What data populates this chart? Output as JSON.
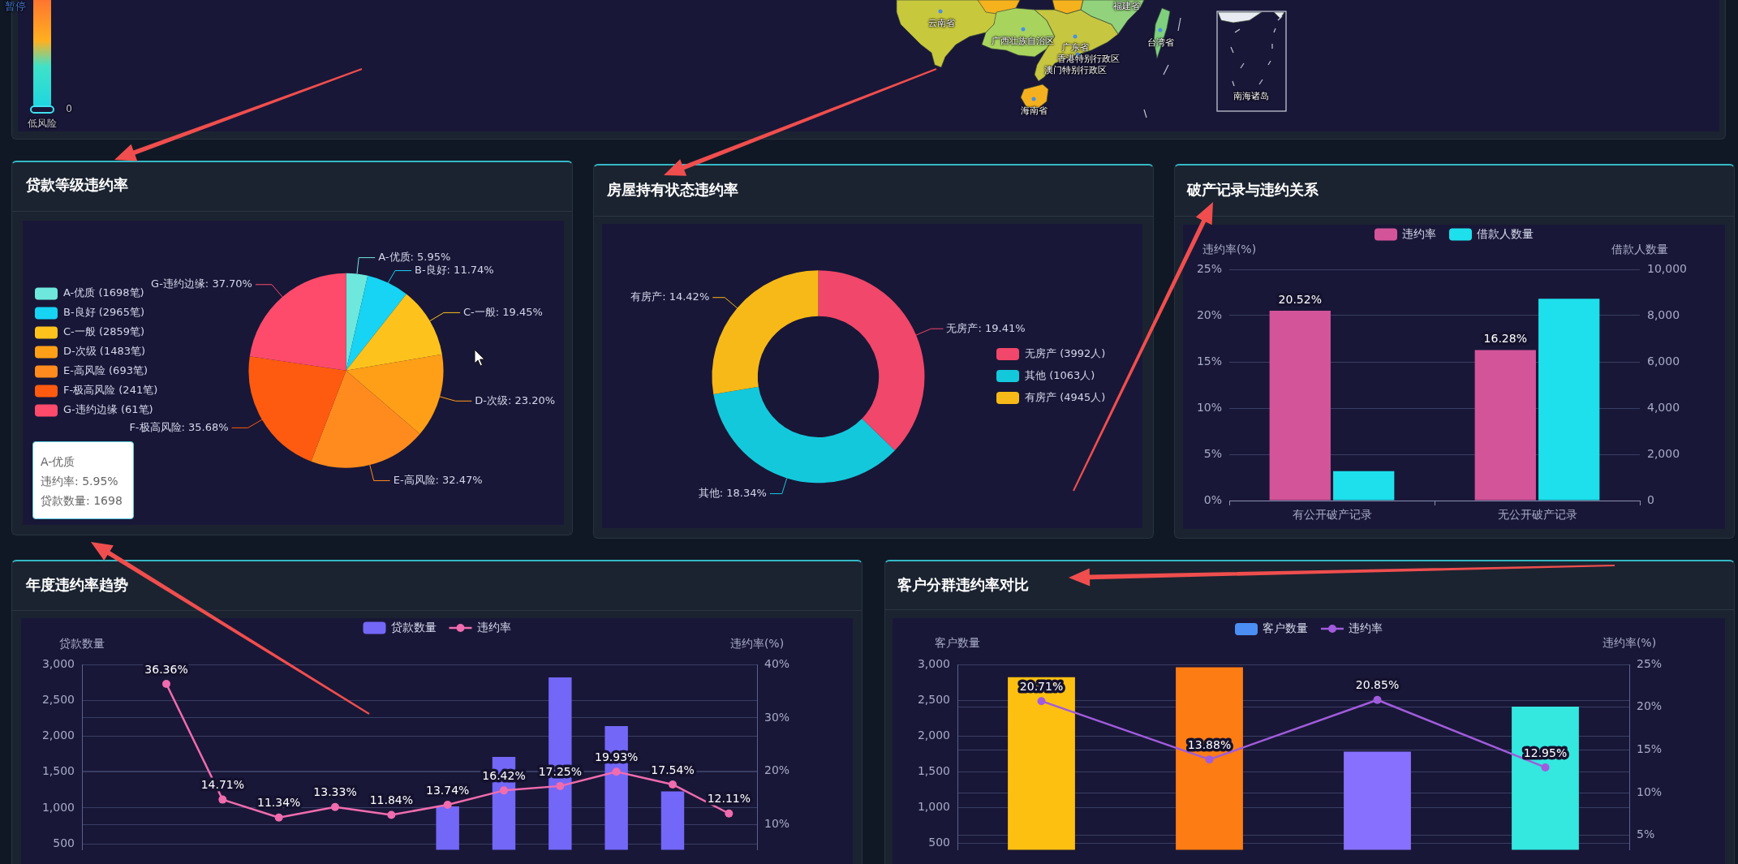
{
  "chart_data": [
    {
      "type": "other",
      "annotations": [
        "暂停",
        "0",
        "低风险",
        "云南省",
        "广西壮族自治区",
        "广东省",
        "香港特别行政区",
        "澳门特别行政区",
        "福建省",
        "台湾省",
        "海南省",
        "南海诸岛"
      ]
    },
    {
      "type": "pie",
      "title": "贷款等级违约率",
      "categories": [
        "A-优质 (1698笔)",
        "B-良好 (2965笔)",
        "C-一般 (2859笔)",
        "D-次级 (1483笔)",
        "E-高风险 (693笔)",
        "F-极高风险 (241笔)",
        "G-违约边缘 (61笔)"
      ],
      "values": [
        5.95,
        11.74,
        19.45,
        23.2,
        32.47,
        35.68,
        37.7
      ],
      "value_labels": [
        "A-优质: 5.95%",
        "B-良好: 11.74%",
        "C-一般: 19.45%",
        "D-次级: 23.20%",
        "E-高风险: 32.47%",
        "F-极高风险: 35.68%",
        "G-违约边缘: 37.70%"
      ],
      "colors": [
        "#6ee8dc",
        "#17d3f4",
        "#fdc31c",
        "#ff9f18",
        "#ff8b1e",
        "#ff5b10",
        "#fe4b6b"
      ],
      "legend": "left",
      "annotations": [
        "A-优质",
        "违约率: 5.95%",
        "贷款数量: 1698"
      ]
    },
    {
      "type": "donut",
      "title": "房屋持有状态违约率",
      "categories": [
        "无房产 (3992人)",
        "其他 (1063人)",
        "有房产 (4945人)"
      ],
      "values": [
        19.41,
        18.34,
        14.42
      ],
      "value_labels": [
        "无房产: 19.41%",
        "其他: 18.34%",
        "有房产: 14.42%"
      ],
      "colors": [
        "#f0476a",
        "#14c8dc",
        "#f6b918"
      ],
      "legend": "right"
    },
    {
      "type": "bar",
      "title": "破产记录与违约关系",
      "categories": [
        "有公开破产记录",
        "无公开破产记录"
      ],
      "ylabel": "违约率(%)",
      "y2label": "借款人数量",
      "ylim": [
        0,
        25
      ],
      "yticks": [
        {
          "value": 0,
          "label": "0%"
        },
        {
          "value": 5,
          "label": "5%"
        },
        {
          "value": 10,
          "label": "10%"
        },
        {
          "value": 15,
          "label": "15%"
        },
        {
          "value": 20,
          "label": "20%"
        },
        {
          "value": 25,
          "label": "25%"
        }
      ],
      "y2lim": [
        0,
        10000
      ],
      "y2ticks": [
        0,
        {
          "value": 2000,
          "label": "2,000"
        },
        {
          "value": 4000,
          "label": "4,000"
        },
        {
          "value": 6000,
          "label": "6,000"
        },
        {
          "value": 8000,
          "label": "8,000"
        },
        {
          "value": 10000,
          "label": "10,000"
        }
      ],
      "series": [
        {
          "name": "违约率",
          "color": "#d4549a",
          "values": [
            20.52,
            16.28
          ],
          "value_labels": [
            "20.52%",
            "16.28%"
          ]
        },
        {
          "name": "借款人数量",
          "axis": "y2",
          "color": "#1ee0ec",
          "values": [
            1270,
            8730
          ]
        }
      ],
      "legend": "top",
      "grid": "y"
    },
    {
      "type": "bar",
      "title": "年度违约率趋势",
      "categories": [
        null,
        null,
        null,
        null,
        null,
        null,
        null,
        null,
        null,
        null,
        null,
        null
      ],
      "ylabel": "贷款数量",
      "y2label": "违约率(%)",
      "ylim": [
        415,
        3000
      ],
      "yticks": [
        500,
        {
          "value": 1000,
          "label": "1,000"
        },
        {
          "value": 1500,
          "label": "1,500"
        },
        {
          "value": 2000,
          "label": "2,000"
        },
        {
          "value": 2500,
          "label": "2,500"
        },
        {
          "value": 3000,
          "label": "3,000"
        }
      ],
      "y2lim": [
        5.3,
        40
      ],
      "y2ticks": [
        {
          "value": 10,
          "label": "10%"
        },
        {
          "value": 20,
          "label": "20%"
        },
        {
          "value": 30,
          "label": "30%"
        },
        {
          "value": 40,
          "label": "40%"
        }
      ],
      "series": [
        {
          "name": "贷款数量",
          "type": "bar",
          "color": "#7367f8",
          "values": [
            null,
            null,
            null,
            null,
            null,
            null,
            1020,
            1710,
            2820,
            2140,
            1230,
            null
          ]
        },
        {
          "name": "违约率",
          "type": "line",
          "axis": "y2",
          "color": "#f06cae",
          "values": [
            null,
            36.36,
            14.71,
            11.34,
            13.33,
            11.84,
            13.74,
            16.42,
            17.25,
            19.93,
            17.54,
            12.11
          ],
          "value_labels": [
            null,
            "36.36%",
            "14.71%",
            "11.34%",
            "13.33%",
            "11.84%",
            "13.74%",
            "16.42%",
            "17.25%",
            "19.93%",
            "17.54%",
            "12.11%"
          ]
        }
      ],
      "marker": "circle",
      "legend": "top",
      "grid": "y"
    },
    {
      "type": "bar",
      "title": "客户分群违约率对比",
      "categories": [
        null,
        null,
        null,
        null
      ],
      "ylabel": "客户数量",
      "y2label": "违约率(%)",
      "ylim": [
        406,
        3000
      ],
      "yticks": [
        500,
        {
          "value": 1000,
          "label": "1,000"
        },
        {
          "value": 1500,
          "label": "1,500"
        },
        {
          "value": 2000,
          "label": "2,000"
        },
        {
          "value": 2500,
          "label": "2,500"
        },
        {
          "value": 3000,
          "label": "3,000"
        }
      ],
      "y2lim": [
        3.3,
        25
      ],
      "y2ticks": [
        {
          "value": 5,
          "label": "5%"
        },
        {
          "value": 10,
          "label": "10%"
        },
        {
          "value": 15,
          "label": "15%"
        },
        {
          "value": 20,
          "label": "20%"
        },
        {
          "value": 25,
          "label": "25%"
        }
      ],
      "annotations": [
        "客户数量"
      ],
      "series": [
        {
          "type": "bar",
          "color": "#4b8ff4",
          "colors": [
            "#fdc010",
            "#fe7c14",
            "#8770fe",
            "#34e7df"
          ],
          "values": [
            2820,
            2960,
            1780,
            2410
          ]
        },
        {
          "name": "违约率",
          "type": "line",
          "axis": "y2",
          "color": "#a05cdc",
          "values": [
            20.71,
            13.88,
            20.85,
            12.95
          ],
          "value_labels": [
            "20.71%",
            "13.88%",
            "20.85%",
            "12.95%"
          ]
        }
      ],
      "marker": "circle",
      "legend": "top",
      "grid": "y"
    }
  ]
}
